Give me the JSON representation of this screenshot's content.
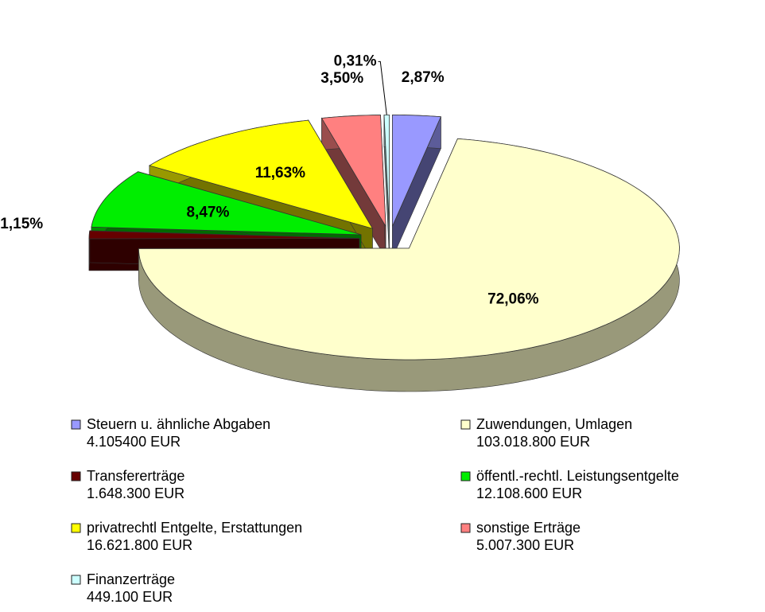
{
  "chart_data": {
    "type": "pie",
    "categories": [
      "Steuern u. ähnliche Abgaben",
      "Zuwendungen, Umlagen",
      "Transfererträge",
      "öffentl.-rechtl. Leistungsentgelte",
      "privatrechtl Entgelte, Erstattungen",
      "sonstige Erträge",
      "Finanzerträge"
    ],
    "category_details": [
      "4.105400 EUR",
      "103.018.800 EUR",
      "1.648.300 EUR",
      "12.108.600 EUR",
      "16.621.800 EUR",
      "5.007.300 EUR",
      "449.100 EUR"
    ],
    "values": [
      2.87,
      72.06,
      1.15,
      8.47,
      11.63,
      3.5,
      0.31
    ],
    "value_labels": [
      "2,87%",
      "72,06%",
      "1,15%",
      "8,47%",
      "11,63%",
      "3,50%",
      "0,31%"
    ],
    "colors": [
      "#9999ff",
      "#ffffcc",
      "#660000",
      "#00ee00",
      "#ffff00",
      "#ff8080",
      "#ccffff"
    ],
    "legend": "bottom"
  }
}
